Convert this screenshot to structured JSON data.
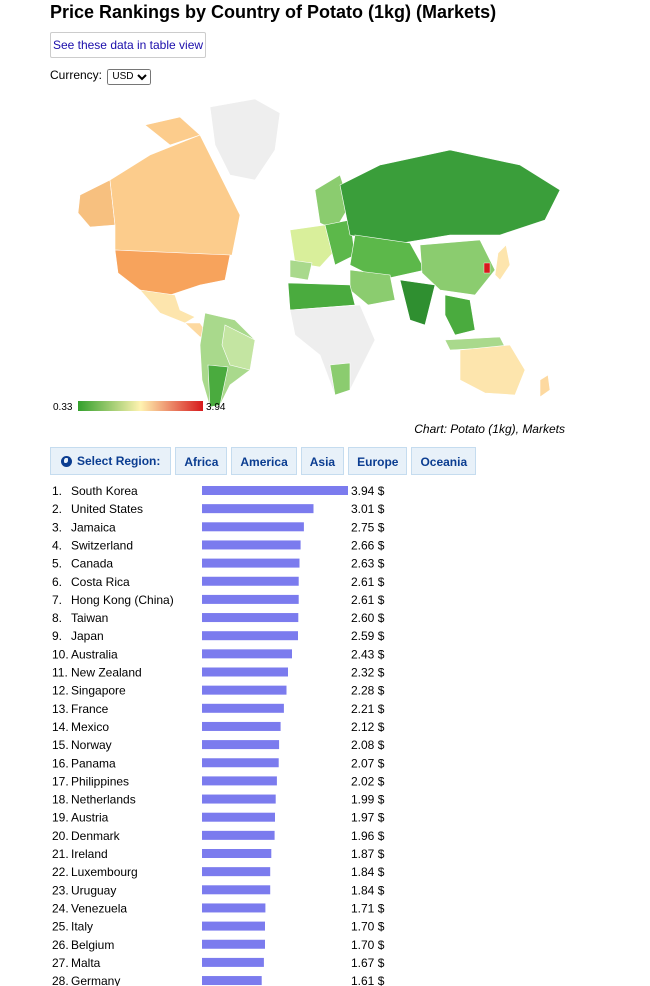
{
  "title": "Price Rankings by Country of Potato (1kg) (Markets)",
  "table_view_label": "See these data in table view",
  "currency": {
    "label": "Currency:",
    "selected": "USD"
  },
  "legend": {
    "min": "0.33",
    "max": "3.94"
  },
  "caption": "Chart: Potato (1kg), Markets",
  "regions": {
    "select_label": "Select Region:",
    "items": [
      "Africa",
      "America",
      "Asia",
      "Europe",
      "Oceania"
    ]
  },
  "colors": {
    "bar": "#7b7bee",
    "low": "#33a02c",
    "mid": "#fff3b0",
    "high": "#d7191c"
  },
  "chart_data": {
    "type": "bar",
    "unit": "$",
    "categories": [
      "South Korea",
      "United States",
      "Jamaica",
      "Switzerland",
      "Canada",
      "Costa Rica",
      "Hong Kong (China)",
      "Taiwan",
      "Japan",
      "Australia",
      "New Zealand",
      "Singapore",
      "France",
      "Mexico",
      "Norway",
      "Panama",
      "Philippines",
      "Netherlands",
      "Austria",
      "Denmark",
      "Ireland",
      "Luxembourg",
      "Uruguay",
      "Venezuela",
      "Italy",
      "Belgium",
      "Malta",
      "Germany"
    ],
    "values": [
      3.94,
      3.01,
      2.75,
      2.66,
      2.63,
      2.61,
      2.61,
      2.6,
      2.59,
      2.43,
      2.32,
      2.28,
      2.21,
      2.12,
      2.08,
      2.07,
      2.02,
      1.99,
      1.97,
      1.96,
      1.87,
      1.84,
      1.84,
      1.71,
      1.7,
      1.7,
      1.67,
      1.61
    ],
    "value_labels": [
      "3.94 $",
      "3.01 $",
      "2.75 $",
      "2.66 $",
      "2.63 $",
      "2.61 $",
      "2.61 $",
      "2.60 $",
      "2.59 $",
      "2.43 $",
      "2.32 $",
      "2.28 $",
      "2.21 $",
      "2.12 $",
      "2.08 $",
      "2.07 $",
      "2.02 $",
      "1.99 $",
      "1.97 $",
      "1.96 $",
      "1.87 $",
      "1.84 $",
      "1.84 $",
      "1.71 $",
      "1.70 $",
      "1.70 $",
      "1.67 $",
      "1.61 $"
    ],
    "xlim": [
      0,
      3.94
    ]
  }
}
